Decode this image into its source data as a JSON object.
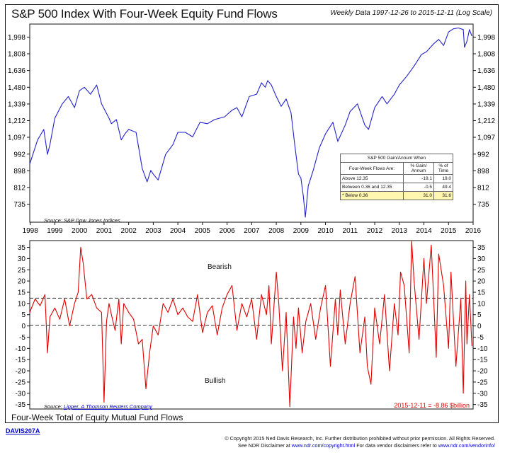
{
  "title": "S&P 500 Index With Four-Week Equity Fund Flows",
  "subtitle": "Weekly Data 1997-12-26 to 2015-12-11 (Log Scale)",
  "top_source": "Source:  S&P Dow Jones Indices",
  "bottom_source_prefix": "Source:",
  "bottom_source_link": "Lipper, A Thomson Reuters Company",
  "bottom_title": "Four-Week Total of Equity Mutual Fund Flows",
  "label_bearish": "Bearish",
  "label_bullish": "Bullish",
  "latest_reading": "2015-12-11 = -8.86 $billion",
  "davis_id": "DAVIS207A",
  "copyright_line1": "© Copyright 2015 Ned Davis Research, Inc. Further distribution prohibited without prior permission. All Rights Reserved.",
  "copyright_line2_prefix": "See NDR Disclaimer at",
  "copyright_link1": "www.ndr.com/copyright.html",
  "copyright_line2_mid": "For data vendor disclaimers refer to",
  "copyright_link2": "www.ndr.com/vendorinfo/",
  "colors": {
    "sp500": "#2222cc",
    "flows": "#e00000",
    "highlight": "#fff6b0",
    "link": "#0000cc"
  },
  "table": {
    "title": "S&P 500 Gain/Annum When",
    "head_flows": "Four-Week Flows Are:",
    "head_gain": "% Gain/ Annum",
    "head_time": "% of Time",
    "rows": [
      {
        "label": "Above 12.35",
        "gain": "-19.1",
        "time": "19.0"
      },
      {
        "label": "Between 0.36 and 12.35",
        "gain": "-0.5",
        "time": "49.4"
      },
      {
        "label": "* Below 0.36",
        "gain": "31.0",
        "time": "31.6"
      }
    ]
  },
  "chart_data": [
    {
      "type": "line",
      "title": "S&P 500 Index",
      "scale": "log",
      "yticks": [
        735,
        812,
        898,
        992,
        1097,
        1212,
        1339,
        1480,
        1636,
        1808,
        1998
      ],
      "ylim": [
        660,
        2160
      ],
      "xticks": [
        "1998",
        "1999",
        "2000",
        "2001",
        "2002",
        "2003",
        "2004",
        "2005",
        "2006",
        "2007",
        "2008",
        "2009",
        "2010",
        "2011",
        "2012",
        "2013",
        "2014",
        "2015",
        "2016"
      ],
      "xlim": [
        1997.98,
        2016.0
      ],
      "series": [
        {
          "x": [
            1997.98,
            1998.3,
            1998.55,
            1998.7,
            1998.8,
            1999.0,
            1999.3,
            1999.55,
            1999.8,
            2000.0,
            2000.2,
            2000.45,
            2000.7,
            2000.9,
            2001.2,
            2001.3,
            2001.5,
            2001.7,
            2001.85,
            2002.0,
            2002.3,
            2002.55,
            2002.75,
            2002.9,
            2003.0,
            2003.2,
            2003.5,
            2003.8,
            2004.0,
            2004.3,
            2004.6,
            2004.9,
            2005.2,
            2005.5,
            2005.9,
            2006.2,
            2006.4,
            2006.6,
            2006.9,
            2007.2,
            2007.4,
            2007.55,
            2007.65,
            2007.8,
            2008.0,
            2008.2,
            2008.4,
            2008.6,
            2008.75,
            2008.9,
            2009.0,
            2009.1,
            2009.18,
            2009.3,
            2009.5,
            2009.75,
            2010.0,
            2010.3,
            2010.5,
            2010.8,
            2011.0,
            2011.3,
            2011.6,
            2011.75,
            2012.0,
            2012.3,
            2012.5,
            2012.8,
            2013.0,
            2013.3,
            2013.6,
            2013.9,
            2014.1,
            2014.4,
            2014.6,
            2014.8,
            2015.0,
            2015.2,
            2015.4,
            2015.6,
            2015.65,
            2015.75,
            2015.85,
            2015.95
          ],
          "y": [
            935,
            1080,
            1150,
            990,
            1050,
            1230,
            1340,
            1400,
            1310,
            1450,
            1480,
            1420,
            1500,
            1340,
            1230,
            1190,
            1220,
            1080,
            1120,
            1150,
            1130,
            910,
            840,
            900,
            880,
            850,
            990,
            1050,
            1130,
            1130,
            1100,
            1200,
            1190,
            1220,
            1240,
            1290,
            1310,
            1240,
            1400,
            1420,
            1520,
            1480,
            1540,
            1500,
            1400,
            1320,
            1380,
            1270,
            1050,
            880,
            860,
            770,
            680,
            820,
            900,
            1030,
            1120,
            1200,
            1070,
            1180,
            1280,
            1340,
            1180,
            1150,
            1310,
            1400,
            1340,
            1420,
            1500,
            1580,
            1680,
            1800,
            1830,
            1920,
            1970,
            1900,
            2060,
            2100,
            2110,
            2090,
            1880,
            1950,
            2090,
            2010
          ]
        }
      ]
    },
    {
      "type": "line",
      "title": "Four-Week Total of Equity Mutual Fund Flows",
      "ylabel": "$billion",
      "yticks": [
        -35,
        -30,
        -25,
        -20,
        -15,
        -10,
        -5,
        0,
        5,
        10,
        15,
        20,
        25,
        30,
        35
      ],
      "ylim": [
        -37,
        38
      ],
      "reference_lines": [
        12.35,
        0.36
      ],
      "xticks": [
        "1998",
        "1999",
        "2000",
        "2001",
        "2002",
        "2003",
        "2004",
        "2005",
        "2006",
        "2007",
        "2008",
        "2009",
        "2010",
        "2011",
        "2012",
        "2013",
        "2014",
        "2015",
        "2016"
      ],
      "xlim": [
        1997.98,
        2016.0
      ],
      "series": [
        {
          "x": [
            1997.98,
            1998.2,
            1998.4,
            1998.6,
            1998.7,
            1998.8,
            1999.0,
            1999.2,
            1999.4,
            1999.6,
            1999.8,
            1999.95,
            2000.05,
            2000.15,
            2000.3,
            2000.5,
            2000.7,
            2000.9,
            2001.0,
            2001.1,
            2001.2,
            2001.3,
            2001.45,
            2001.6,
            2001.7,
            2001.8,
            2002.0,
            2002.2,
            2002.4,
            2002.55,
            2002.7,
            2002.85,
            2003.0,
            2003.2,
            2003.4,
            2003.6,
            2003.8,
            2004.0,
            2004.2,
            2004.4,
            2004.6,
            2004.8,
            2005.0,
            2005.2,
            2005.4,
            2005.6,
            2005.8,
            2006.0,
            2006.2,
            2006.4,
            2006.6,
            2006.8,
            2007.0,
            2007.2,
            2007.4,
            2007.6,
            2007.7,
            2007.8,
            2008.0,
            2008.1,
            2008.25,
            2008.4,
            2008.55,
            2008.7,
            2008.8,
            2008.9,
            2009.05,
            2009.2,
            2009.4,
            2009.6,
            2009.8,
            2010.0,
            2010.2,
            2010.4,
            2010.5,
            2010.6,
            2010.8,
            2011.0,
            2011.2,
            2011.4,
            2011.6,
            2011.7,
            2011.85,
            2012.0,
            2012.2,
            2012.4,
            2012.6,
            2012.8,
            2012.95,
            2013.05,
            2013.2,
            2013.4,
            2013.5,
            2013.6,
            2013.8,
            2014.0,
            2014.1,
            2014.3,
            2014.5,
            2014.6,
            2014.8,
            2015.0,
            2015.1,
            2015.3,
            2015.5,
            2015.6,
            2015.7,
            2015.75,
            2015.85,
            2015.95
          ],
          "y": [
            6,
            12,
            9,
            14,
            -12,
            4,
            8,
            3,
            12,
            0,
            10,
            15,
            35,
            28,
            12,
            14,
            8,
            6,
            -34,
            2,
            10,
            5,
            -2,
            12,
            -8,
            10,
            6,
            3,
            -8,
            -6,
            -28,
            -12,
            0,
            -4,
            10,
            6,
            12,
            5,
            8,
            4,
            2,
            14,
            -3,
            6,
            9,
            -4,
            8,
            14,
            18,
            -2,
            10,
            4,
            12,
            -6,
            14,
            5,
            18,
            -8,
            24,
            10,
            -20,
            6,
            -36,
            4,
            -10,
            8,
            -12,
            2,
            10,
            -6,
            8,
            18,
            -18,
            12,
            -4,
            16,
            -8,
            10,
            22,
            -12,
            4,
            -18,
            -26,
            8,
            -8,
            14,
            -20,
            10,
            -4,
            24,
            18,
            -12,
            38,
            20,
            -6,
            30,
            10,
            36,
            -14,
            32,
            18,
            -10,
            24,
            -18,
            12,
            -30,
            20,
            -8,
            14,
            -9
          ]
        }
      ]
    }
  ]
}
